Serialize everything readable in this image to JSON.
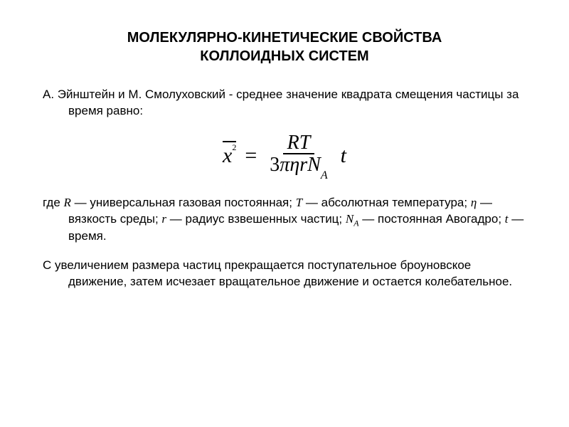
{
  "title_line1": "МОЛЕКУЛЯРНО-КИНЕТИЧЕСКИЕ СВОЙСТВА",
  "title_line2": "КОЛЛОИДНЫХ СИСТЕМ",
  "intro": "А. Эйнштейн и М. Смолуховский - среднее значение квадрата смещения частицы за время равно:",
  "formula": {
    "lhs_var": "x",
    "lhs_exp": "2",
    "eq": "=",
    "numerator": "RT",
    "denominator_3": "3",
    "denominator_pi": "π",
    "denominator_eta": "η",
    "denominator_r": "r",
    "denominator_N": "N",
    "denominator_A": "A",
    "tail_t": "t"
  },
  "legend_parts": {
    "p1": "где ",
    "R": "R",
    "p2": " — универсальная газовая постоянная; ",
    "T": "T",
    "p3": " — абсолютная температура; ",
    "eta": "η",
    "p4": " — вязкость среды; ",
    "r": "r",
    "p5": " — радиус взвешенных частиц; ",
    "N": "N",
    "A": "A",
    "p6": " — постоянная Авогадро; ",
    "t": "t",
    "p7": " — время."
  },
  "conclusion": "С увеличением размера частиц прекращается поступательное броуновское движение, затем исчезает вращательное движение и остается колебательное.",
  "colors": {
    "background": "#ffffff",
    "text": "#000000"
  },
  "fonts": {
    "body_family": "Arial",
    "formula_family": "Times New Roman",
    "title_size_pt": 20,
    "body_size_pt": 17,
    "formula_size_pt": 30
  }
}
